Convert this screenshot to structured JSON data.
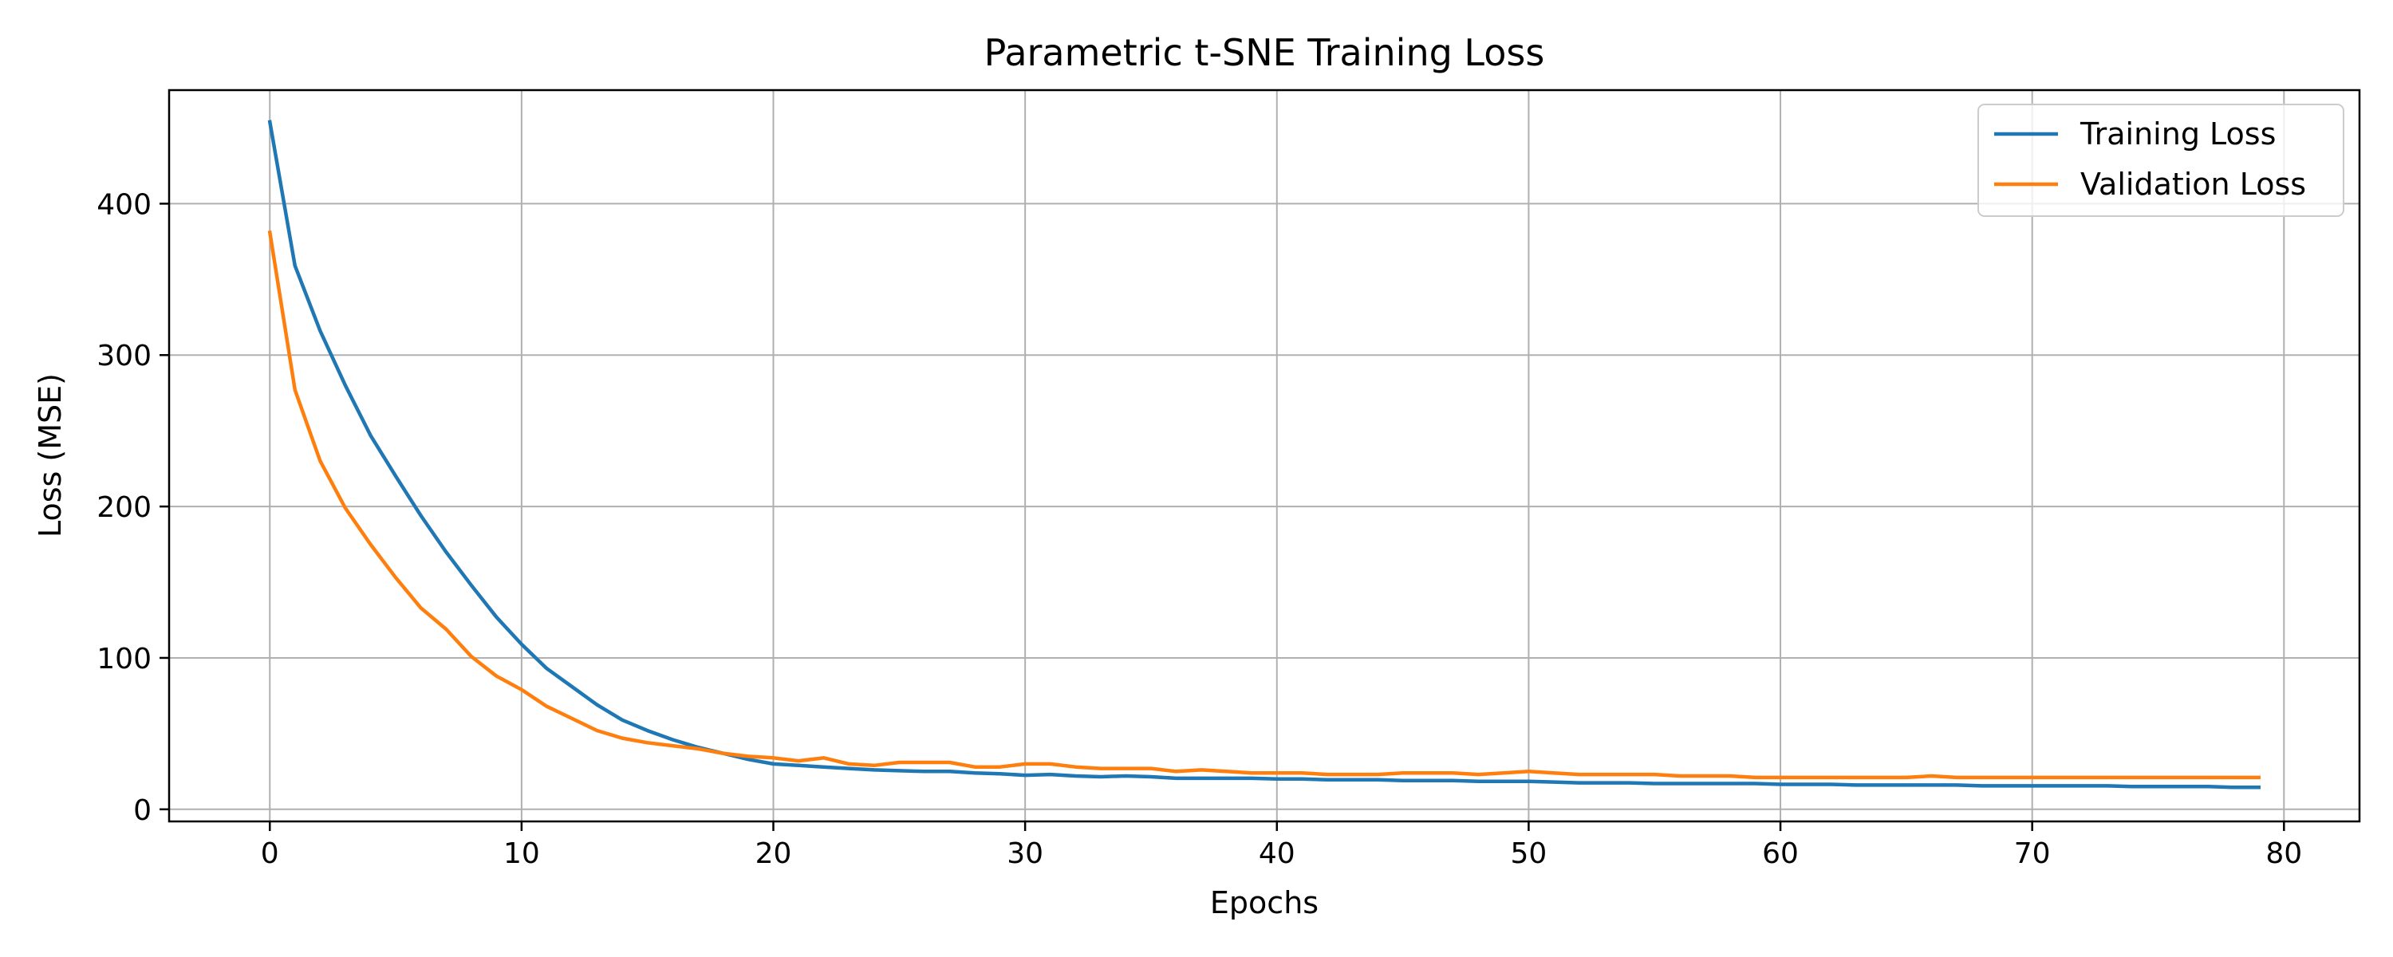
{
  "chart_data": {
    "type": "line",
    "title": "Parametric t-SNE Training Loss",
    "xlabel": "Epochs",
    "ylabel": "Loss (MSE)",
    "xlim": [
      -4,
      83
    ],
    "ylim": [
      -8,
      475
    ],
    "xticks": [
      0,
      10,
      20,
      30,
      40,
      50,
      60,
      70,
      80
    ],
    "yticks": [
      0,
      100,
      200,
      300,
      400
    ],
    "grid": true,
    "legend_position": "top-right",
    "series": [
      {
        "name": "Training Loss",
        "color": "#1f77b4",
        "x": [
          0,
          1,
          2,
          3,
          4,
          5,
          6,
          7,
          8,
          9,
          10,
          11,
          12,
          13,
          14,
          15,
          16,
          17,
          18,
          19,
          20,
          21,
          22,
          23,
          24,
          25,
          26,
          27,
          28,
          29,
          30,
          31,
          32,
          33,
          34,
          35,
          36,
          37,
          38,
          39,
          40,
          41,
          42,
          43,
          44,
          45,
          46,
          47,
          48,
          49,
          50,
          51,
          52,
          53,
          54,
          55,
          56,
          57,
          58,
          59,
          60,
          61,
          62,
          63,
          64,
          65,
          66,
          67,
          68,
          69,
          70,
          71,
          72,
          73,
          74,
          75,
          76,
          77,
          78,
          79
        ],
        "values": [
          454,
          359,
          316,
          280,
          247,
          220,
          194,
          170,
          148,
          127,
          109,
          93,
          81,
          69,
          59,
          52,
          46,
          41,
          37,
          33,
          30,
          29,
          28,
          27,
          26,
          25.5,
          25,
          25,
          24,
          23.5,
          22.5,
          23,
          22,
          21.5,
          22,
          21.5,
          20.5,
          20.5,
          20.5,
          20.5,
          20,
          20,
          19.5,
          19.5,
          19.5,
          19,
          19,
          19,
          18.5,
          18.5,
          18.5,
          18,
          17.5,
          17.5,
          17.5,
          17,
          17,
          17,
          17,
          17,
          16.5,
          16.5,
          16.5,
          16,
          16,
          16,
          16,
          16,
          15.5,
          15.5,
          15.5,
          15.5,
          15.5,
          15.5,
          15,
          15,
          15,
          15,
          14.5,
          14.5
        ]
      },
      {
        "name": "Validation Loss",
        "color": "#ff7f0e",
        "x": [
          0,
          1,
          2,
          3,
          4,
          5,
          6,
          7,
          8,
          9,
          10,
          11,
          12,
          13,
          14,
          15,
          16,
          17,
          18,
          19,
          20,
          21,
          22,
          23,
          24,
          25,
          26,
          27,
          28,
          29,
          30,
          31,
          32,
          33,
          34,
          35,
          36,
          37,
          38,
          39,
          40,
          41,
          42,
          43,
          44,
          45,
          46,
          47,
          48,
          49,
          50,
          51,
          52,
          53,
          54,
          55,
          56,
          57,
          58,
          59,
          60,
          61,
          62,
          63,
          64,
          65,
          66,
          67,
          68,
          69,
          70,
          71,
          72,
          73,
          74,
          75,
          76,
          77,
          78,
          79
        ],
        "values": [
          381,
          277,
          230,
          199,
          175,
          153,
          133,
          119,
          101,
          88,
          79,
          68,
          60,
          52,
          47,
          44,
          42,
          40,
          37,
          35,
          34,
          32,
          34,
          30,
          29,
          31,
          31,
          31,
          28,
          28,
          30,
          30,
          28,
          27,
          27,
          27,
          25,
          26,
          25,
          24,
          24,
          24,
          23,
          23,
          23,
          24,
          24,
          24,
          23,
          24,
          25,
          24,
          23,
          23,
          23,
          23,
          22,
          22,
          22,
          21,
          21,
          21,
          21,
          21,
          21,
          21,
          22,
          21,
          21,
          21,
          21,
          21,
          21,
          21,
          21,
          21,
          21,
          21,
          21,
          21
        ]
      }
    ]
  }
}
